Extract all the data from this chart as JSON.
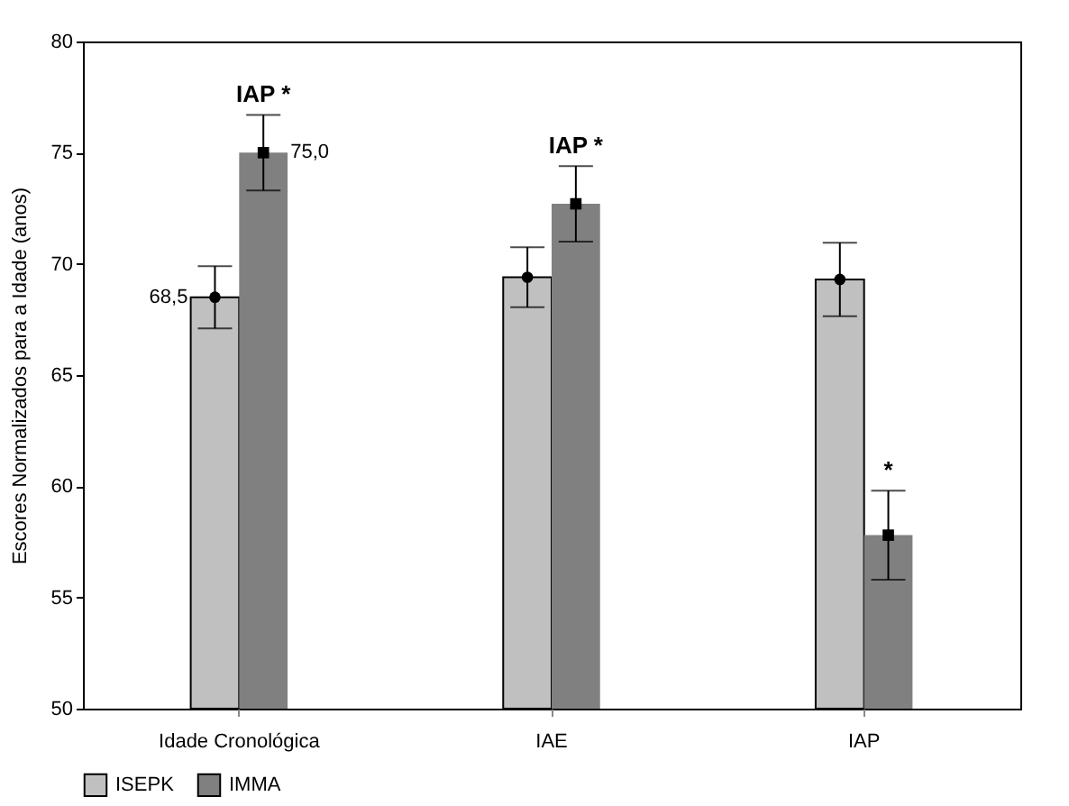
{
  "chart_data": {
    "type": "bar",
    "ylabel": "Escores Normalizados para a Idade (anos)",
    "categories": [
      "Idade Cronológica",
      "IAE",
      "IAP"
    ],
    "series": [
      {
        "name": "ISEPK",
        "color": "#c0c0c0",
        "values": [
          68.5,
          69.4,
          69.3
        ],
        "errors": [
          1.4,
          1.35,
          1.65
        ]
      },
      {
        "name": "IMMA",
        "color": "#808080",
        "values": [
          75.0,
          72.7,
          57.8
        ],
        "errors": [
          1.7,
          1.7,
          2.0
        ]
      },
      {
        "type": "scatter",
        "marker": "circle",
        "color": "#000000",
        "x": [
          "Idade Cronológica",
          "IAE",
          "IAP"
        ],
        "values": [
          68.5,
          69.4,
          69.3
        ],
        "value_labels": [
          "68,5",
          null,
          null
        ]
      },
      {
        "type": "scatter",
        "marker": "square",
        "color": "#000000",
        "x": [
          "Idade Cronológica",
          "IAE",
          "IAP"
        ],
        "values": [
          75.0,
          72.7,
          57.8
        ],
        "value_labels": [
          "75,0",
          null,
          null
        ]
      }
    ],
    "ylim": [
      50,
      80
    ],
    "yticks": [
      50,
      55,
      60,
      65,
      70,
      75,
      80
    ],
    "grid": false,
    "legend": "bottom",
    "annotations": [
      {
        "text": "IAP *",
        "x": "Idade Cronológica",
        "y": 76.7
      },
      {
        "text": "IAP *",
        "x": "IAE",
        "y": 74.4
      },
      {
        "text": "*",
        "x": "IAP",
        "y": 59.8
      }
    ]
  }
}
